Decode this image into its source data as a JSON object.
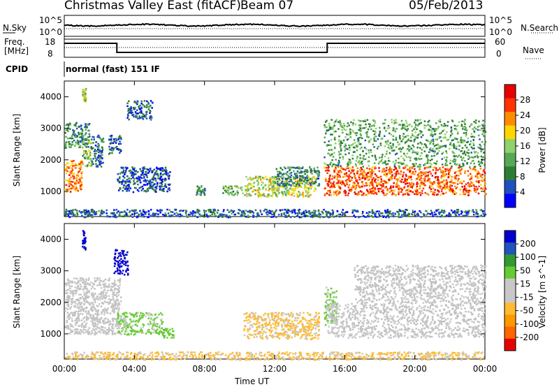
{
  "header": {
    "station": "Christmas Valley East (fitACF)",
    "beam": "Beam 07",
    "date": "05/Feb/2013"
  },
  "top_panels": {
    "nsky_label": "N.Sky",
    "nsky_ticks": [
      "10^5",
      "10^0"
    ],
    "nsearch_label": "N.Search",
    "nsearch_ticks": [
      "10^5",
      "10^0"
    ],
    "freq_label_1": "Freq.",
    "freq_label_2": "[MHz]",
    "freq_ticks": [
      "18",
      "8"
    ],
    "nave_label": "Nave",
    "nave_ticks": [
      "60",
      "0"
    ],
    "cpid_label": "CPID",
    "cpid_value": "normal (fast) 151 IF"
  },
  "colors": {
    "power_scale": [
      "#0000ff",
      "#1f4fc0",
      "#2e7d32",
      "#56a855",
      "#8fd16a",
      "#ffd700",
      "#ff8c00",
      "#ff3300",
      "#e60000"
    ],
    "velocity_scale": [
      "#e60000",
      "#ff6600",
      "#ff9900",
      "#ffbb33",
      "#c8c8c8",
      "#c8c8c8",
      "#66cc33",
      "#339933",
      "#2255bb",
      "#0000cc"
    ],
    "ground_scatter": "#c0c0c0"
  },
  "chart_data": [
    {
      "type": "heatmap",
      "title": "",
      "xlabel": "Time UT",
      "ylabel": "Slant Range [km]",
      "x_ticks": [
        "00:00",
        "04:00",
        "08:00",
        "12:00",
        "16:00",
        "20:00",
        "00:00"
      ],
      "y_ticks": [
        "1000",
        "2000",
        "3000",
        "4000"
      ],
      "xlim": [
        0,
        24
      ],
      "ylim": [
        200,
        4500
      ],
      "colorbar": {
        "label": "Power [dB]",
        "ticks": [
          "28",
          "24",
          "20",
          "16",
          "12",
          "8",
          "4"
        ],
        "range": [
          0,
          30
        ]
      },
      "regions": [
        {
          "t0": 0.0,
          "t1": 1.0,
          "r0": 1000,
          "r1": 2000,
          "level": 22
        },
        {
          "t0": 0.0,
          "t1": 1.4,
          "r0": 2400,
          "r1": 3200,
          "level": 9
        },
        {
          "t0": 1.0,
          "t1": 1.5,
          "r0": 1800,
          "r1": 2600,
          "level": 14
        },
        {
          "t0": 1.0,
          "t1": 1.2,
          "r0": 3800,
          "r1": 4300,
          "level": 16
        },
        {
          "t0": 1.5,
          "t1": 2.2,
          "r0": 1800,
          "r1": 2800,
          "level": 7
        },
        {
          "t0": 2.5,
          "t1": 3.2,
          "r0": 2200,
          "r1": 2800,
          "level": 6
        },
        {
          "t0": 3.0,
          "t1": 6.0,
          "r0": 1000,
          "r1": 1800,
          "level": 5
        },
        {
          "t0": 3.5,
          "t1": 5.0,
          "r0": 3300,
          "r1": 3900,
          "level": 6
        },
        {
          "t0": 7.5,
          "t1": 8.0,
          "r0": 900,
          "r1": 1200,
          "level": 10
        },
        {
          "t0": 9.0,
          "t1": 10.3,
          "r0": 900,
          "r1": 1200,
          "level": 12
        },
        {
          "t0": 10.3,
          "t1": 14.3,
          "r0": 850,
          "r1": 1500,
          "level": 16
        },
        {
          "t0": 12.0,
          "t1": 14.5,
          "r0": 1200,
          "r1": 1800,
          "level": 8
        },
        {
          "t0": 14.8,
          "t1": 24.0,
          "r0": 900,
          "r1": 1800,
          "level": 24
        },
        {
          "t0": 14.8,
          "t1": 24.0,
          "r0": 1800,
          "r1": 3300,
          "level": 11
        },
        {
          "t0": 0.0,
          "t1": 24.0,
          "r0": 200,
          "r1": 450,
          "level": 6
        }
      ]
    },
    {
      "type": "heatmap",
      "title": "",
      "xlabel": "Time UT",
      "ylabel": "Slant Range [km]",
      "x_ticks": [
        "00:00",
        "04:00",
        "08:00",
        "12:00",
        "16:00",
        "20:00",
        "00:00"
      ],
      "y_ticks": [
        "1000",
        "2000",
        "3000",
        "4000"
      ],
      "xlim": [
        0,
        24
      ],
      "ylim": [
        200,
        4500
      ],
      "colorbar": {
        "label": "Velocity [m s^-1]",
        "ticks": [
          "200",
          "100",
          "50",
          "15",
          "-15",
          "-50",
          "-100",
          "-200"
        ],
        "range": [
          -250,
          250
        ]
      },
      "regions": [
        {
          "t0": 0.0,
          "t1": 3.2,
          "r0": 1000,
          "r1": 2800,
          "vel": 0
        },
        {
          "t0": 1.0,
          "t1": 1.2,
          "r0": 3700,
          "r1": 4300,
          "vel": 220
        },
        {
          "t0": 2.8,
          "t1": 3.6,
          "r0": 2900,
          "r1": 3700,
          "vel": 230
        },
        {
          "t0": 3.0,
          "t1": 5.6,
          "r0": 1000,
          "r1": 1700,
          "vel": 60
        },
        {
          "t0": 5.6,
          "t1": 6.2,
          "r0": 900,
          "r1": 1200,
          "vel": 80
        },
        {
          "t0": 10.2,
          "t1": 14.5,
          "r0": 850,
          "r1": 1700,
          "vel": -60
        },
        {
          "t0": 14.8,
          "t1": 15.5,
          "r0": 1300,
          "r1": 2500,
          "vel": 60
        },
        {
          "t0": 15.0,
          "t1": 24.0,
          "r0": 900,
          "r1": 2000,
          "vel": 0
        },
        {
          "t0": 16.5,
          "t1": 24.0,
          "r0": 2000,
          "r1": 3200,
          "vel": 0
        },
        {
          "t0": 0.0,
          "t1": 24.0,
          "r0": 200,
          "r1": 450,
          "vel": -60
        }
      ]
    }
  ]
}
